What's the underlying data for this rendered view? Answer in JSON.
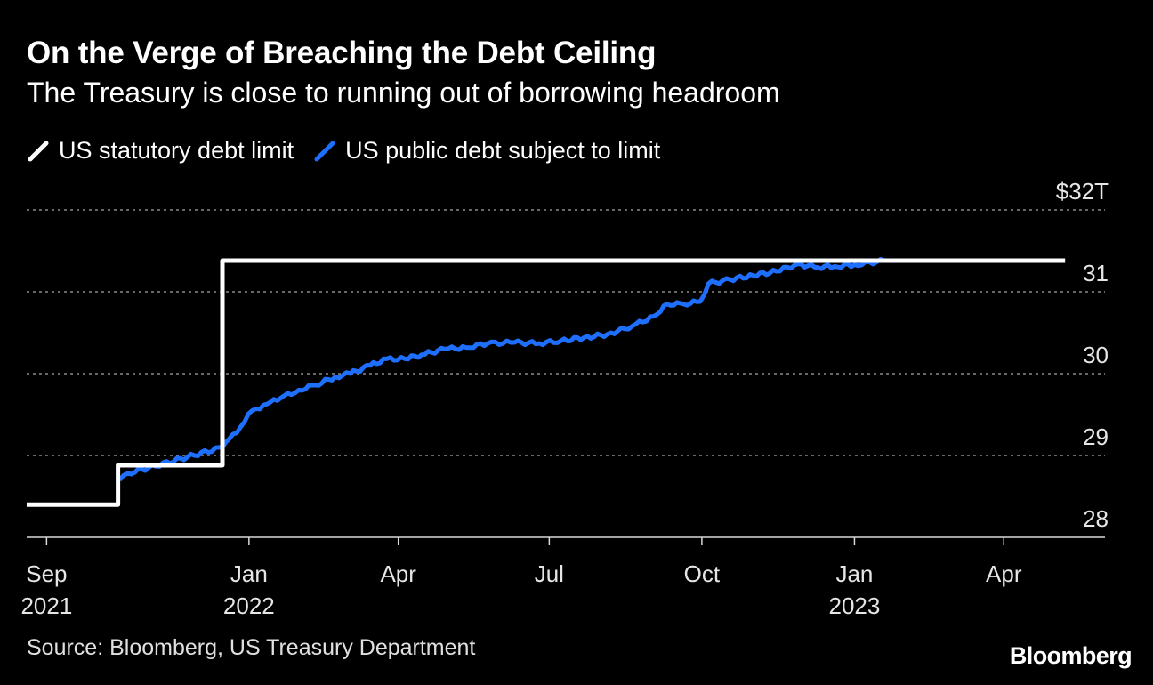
{
  "title": "On the Verge of Breaching the Debt Ceiling",
  "subtitle": "The Treasury is close to running out of borrowing headroom",
  "source": "Source: Bloomberg, US Treasury Department",
  "brand": "Bloomberg",
  "legend": [
    {
      "label": "US statutory debt limit",
      "color": "#ffffff",
      "icon": "slash-swatch-icon"
    },
    {
      "label": "US public debt subject to limit",
      "color": "#1f6fff",
      "icon": "slash-swatch-icon"
    }
  ],
  "chart_data": {
    "type": "line",
    "title": "On the Verge of Breaching the Debt Ceiling",
    "subtitle": "The Treasury is close to running out of borrowing headroom",
    "xlabel": "",
    "ylabel": "",
    "ylim": [
      28,
      32
    ],
    "xlim": [
      "2021-08-20",
      "2023-06-01"
    ],
    "grid": true,
    "legend_position": "top-left",
    "y_ticks": [
      {
        "value": 32,
        "label": "$32T"
      },
      {
        "value": 31,
        "label": "31"
      },
      {
        "value": 30,
        "label": "30"
      },
      {
        "value": 29,
        "label": "29"
      },
      {
        "value": 28,
        "label": "28"
      }
    ],
    "x_ticks": [
      {
        "date": "2021-09-01",
        "label": "Sep",
        "year": "2021"
      },
      {
        "date": "2022-01-01",
        "label": "Jan",
        "year": "2022"
      },
      {
        "date": "2022-04-01",
        "label": "Apr",
        "year": ""
      },
      {
        "date": "2022-07-01",
        "label": "Jul",
        "year": ""
      },
      {
        "date": "2022-10-01",
        "label": "Oct",
        "year": ""
      },
      {
        "date": "2023-01-01",
        "label": "Jan",
        "year": "2023"
      },
      {
        "date": "2023-04-01",
        "label": "Apr",
        "year": ""
      }
    ],
    "series": [
      {
        "name": "US statutory debt limit",
        "color": "#ffffff",
        "step": true,
        "points": [
          [
            "2021-08-20",
            28.4
          ],
          [
            "2021-10-14",
            28.4
          ],
          [
            "2021-10-14",
            28.88
          ],
          [
            "2021-12-16",
            28.88
          ],
          [
            "2021-12-16",
            31.38
          ],
          [
            "2023-05-08",
            31.38
          ]
        ]
      },
      {
        "name": "US public debt subject to limit",
        "color": "#1f6fff",
        "step": false,
        "points": [
          [
            "2021-10-15",
            28.7
          ],
          [
            "2021-10-20",
            28.78
          ],
          [
            "2021-12-16",
            29.1
          ],
          [
            "2021-12-20",
            29.2
          ],
          [
            "2021-12-27",
            29.35
          ],
          [
            "2022-01-03",
            29.55
          ],
          [
            "2022-01-12",
            29.63
          ],
          [
            "2022-01-20",
            29.7
          ],
          [
            "2022-01-31",
            29.8
          ],
          [
            "2022-02-10",
            29.86
          ],
          [
            "2022-02-22",
            29.96
          ],
          [
            "2022-03-03",
            30.0
          ],
          [
            "2022-03-15",
            30.1
          ],
          [
            "2022-03-25",
            30.18
          ],
          [
            "2022-04-05",
            30.18
          ],
          [
            "2022-04-15",
            30.23
          ],
          [
            "2022-04-29",
            30.3
          ],
          [
            "2022-05-12",
            30.32
          ],
          [
            "2022-05-25",
            30.37
          ],
          [
            "2022-06-10",
            30.38
          ],
          [
            "2022-06-25",
            30.37
          ],
          [
            "2022-07-08",
            30.4
          ],
          [
            "2022-07-22",
            30.44
          ],
          [
            "2022-08-05",
            30.48
          ],
          [
            "2022-08-20",
            30.58
          ],
          [
            "2022-09-02",
            30.7
          ],
          [
            "2022-09-10",
            30.85
          ],
          [
            "2022-09-20",
            30.85
          ],
          [
            "2022-09-30",
            30.88
          ],
          [
            "2022-10-05",
            31.1
          ],
          [
            "2022-10-18",
            31.15
          ],
          [
            "2022-11-01",
            31.2
          ],
          [
            "2022-11-15",
            31.25
          ],
          [
            "2022-11-28",
            31.34
          ],
          [
            "2022-12-08",
            31.3
          ],
          [
            "2022-12-20",
            31.31
          ],
          [
            "2023-01-01",
            31.33
          ],
          [
            "2023-01-19",
            31.38
          ]
        ]
      }
    ]
  }
}
